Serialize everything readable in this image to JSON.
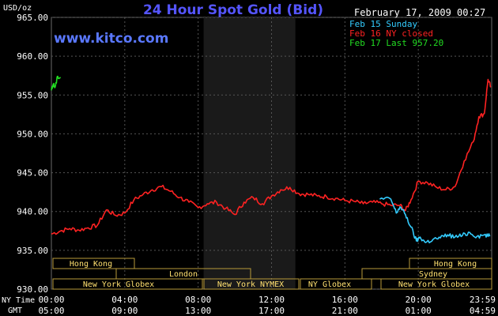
{
  "header": {
    "title": "24 Hour Spot Gold (Bid)",
    "datetime": "February 17, 2009 00:27",
    "watermark": "www.kitco.com",
    "units": "USD/oz"
  },
  "legend": [
    {
      "label": "Feb 15 Sunday",
      "color": "#33ccff"
    },
    {
      "label": "Feb 16 NY closed",
      "color": "#ff2222"
    },
    {
      "label": "Feb 17 Last 957.20",
      "color": "#22dd22"
    }
  ],
  "axis_labels": {
    "ny_time": "NY Time",
    "gmt": "GMT"
  },
  "markets": {
    "row1": [
      "Hong Kong",
      "Hong Kong"
    ],
    "row2": [
      "London",
      "Sydney"
    ],
    "row3": [
      "New York Globex",
      "New York NYMEX",
      "NY Globex",
      "New York Globex"
    ]
  },
  "chart_data": {
    "type": "line",
    "title": "24 Hour Spot Gold (Bid)",
    "ylabel": "USD/oz",
    "ylim": [
      930,
      965
    ],
    "yticks": [
      "965.00",
      "960.00",
      "955.00",
      "950.00",
      "945.00",
      "940.00",
      "935.00",
      "930.00"
    ],
    "xlim": [
      0,
      24
    ],
    "xticks_ny": [
      "00:00",
      "04:00",
      "08:00",
      "12:00",
      "16:00",
      "20:00",
      "23:59"
    ],
    "xticks_gmt": [
      "05:00",
      "09:00",
      "13:00",
      "17:00",
      "21:00",
      "01:00",
      "04:59"
    ],
    "shaded_x": [
      8.3,
      13.3
    ],
    "grid": true,
    "legend_position": "top-right",
    "series": [
      {
        "name": "Feb 16 NY closed",
        "color": "#ff2222",
        "x": [
          0,
          0.5,
          1,
          1.5,
          2,
          2.5,
          3,
          3.5,
          4,
          4.5,
          5,
          5.5,
          6,
          6.5,
          7,
          7.5,
          8,
          8.5,
          9,
          9.5,
          10,
          10.5,
          11,
          11.5,
          12,
          12.5,
          13,
          13.5,
          14,
          14.5,
          15,
          15.5,
          16,
          16.5,
          17,
          17.5,
          18,
          18.5,
          19,
          19.3,
          19.6,
          20,
          20.5,
          21,
          21.5,
          22,
          22.5,
          23,
          23.3,
          23.6,
          23.8,
          23.95
        ],
        "values": [
          937.1,
          937.5,
          937.8,
          937.6,
          937.9,
          938.2,
          940.2,
          939.5,
          939.8,
          941.5,
          942.2,
          942.8,
          943.2,
          942.6,
          941.8,
          941.2,
          940.5,
          941.0,
          941.2,
          940.4,
          939.6,
          941.2,
          941.8,
          941.0,
          942.0,
          942.8,
          943.1,
          942.3,
          942.2,
          942.0,
          941.9,
          941.7,
          941.4,
          941.3,
          941.0,
          941.2,
          941.0,
          940.8,
          940.8,
          940.1,
          941.5,
          943.9,
          943.7,
          943.1,
          942.8,
          943.2,
          946.5,
          949.0,
          952.2,
          952.6,
          957.0,
          956.0
        ]
      },
      {
        "name": "Feb 15 Sunday",
        "color": "#33ccff",
        "x": [
          17.9,
          18.5,
          18.8,
          19.0,
          19.3,
          19.6,
          19.9,
          20.1,
          20.4,
          20.8,
          21.2,
          21.6,
          22.0,
          22.4,
          22.8,
          23.2,
          23.6,
          23.9
        ],
        "values": [
          941.6,
          941.6,
          939.8,
          940.6,
          939.6,
          938.0,
          936.2,
          936.7,
          936.0,
          936.4,
          936.6,
          937.0,
          936.7,
          936.9,
          937.3,
          936.8,
          937.0,
          936.8
        ]
      },
      {
        "name": "Feb 17 Last 957.20",
        "color": "#22dd22",
        "x": [
          0.0,
          0.1,
          0.2,
          0.35,
          0.5
        ],
        "values": [
          955.6,
          956.4,
          956.0,
          957.4,
          957.2
        ]
      }
    ]
  }
}
